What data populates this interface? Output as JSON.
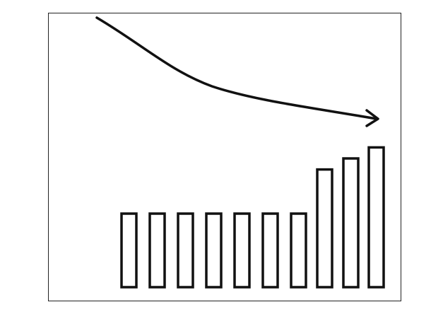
{
  "chart_data": {
    "type": "bar",
    "values": [
      1,
      1,
      1,
      1,
      1,
      1,
      1,
      1.6,
      1.75,
      1.9
    ],
    "trend_line": "decreasing",
    "title": "",
    "xlabel": "",
    "ylabel": ""
  },
  "colors": {
    "stroke": "#111111",
    "bar_fill": "#ffffff",
    "background": "#ffffff"
  }
}
